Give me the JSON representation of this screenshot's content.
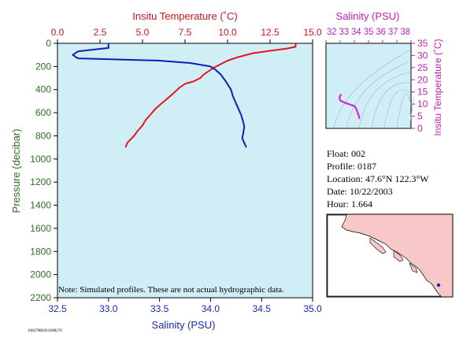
{
  "page": {
    "float_id_tag": "1066788039.0388276"
  },
  "info": {
    "float": "Float:  002",
    "profile": "Profile:  0187",
    "location": "Location:  47.6°N  122.3°W",
    "date": "Date:  10/22/2003",
    "hour": "Hour:  1.664"
  },
  "note": "Note: Simulated profiles.  These are not actual hydrographic data.",
  "colors": {
    "plot_bg": "#d0eef5",
    "temperature": "#e8141e",
    "salinity": "#0d1fb8",
    "ts_curve": "#e020d0",
    "axis_text_temp": "#c8141e",
    "axis_text_sal": "#1a28b0",
    "axis_text_pressure": "#2f6b25",
    "map_land": "#f8c8c8",
    "map_water": "#ffffff",
    "map_marker": "#1a28b0"
  },
  "chart_data": [
    {
      "type": "line",
      "title": "",
      "xlabel": "Salinity (PSU)",
      "x2label": "Insitu Temperature (˚C)",
      "ylabel": "Pressure (decibar)",
      "xlim_salinity": [
        32.5,
        35.0
      ],
      "xlim_temperature": [
        0.0,
        15.0
      ],
      "ylim": [
        2200,
        0
      ],
      "x_ticks_salinity": [
        "32.5",
        "33.0",
        "33.5",
        "34.0",
        "34.5",
        "35.0"
      ],
      "x_ticks_temperature": [
        "0.0",
        "2.5",
        "5.0",
        "7.5",
        "10.0",
        "12.5",
        "15.0"
      ],
      "y_ticks": [
        "0",
        "200",
        "400",
        "600",
        "800",
        "1000",
        "1200",
        "1400",
        "1600",
        "1800",
        "2000",
        "2200"
      ],
      "grid": false,
      "series": [
        {
          "name": "temperature",
          "axis": "x2",
          "points": [
            [
              14.0,
              0
            ],
            [
              14.0,
              30
            ],
            [
              13.5,
              45
            ],
            [
              12.5,
              65
            ],
            [
              11.5,
              85
            ],
            [
              10.6,
              120
            ],
            [
              10.0,
              150
            ],
            [
              9.6,
              180
            ],
            [
              9.2,
              210
            ],
            [
              8.9,
              240
            ],
            [
              8.6,
              270
            ],
            [
              8.4,
              300
            ],
            [
              8.0,
              330
            ],
            [
              7.5,
              350
            ],
            [
              7.2,
              380
            ],
            [
              6.9,
              420
            ],
            [
              6.6,
              460
            ],
            [
              6.2,
              510
            ],
            [
              5.8,
              560
            ],
            [
              5.5,
              610
            ],
            [
              5.2,
              660
            ],
            [
              5.0,
              710
            ],
            [
              4.7,
              760
            ],
            [
              4.5,
              800
            ],
            [
              4.3,
              830
            ],
            [
              4.1,
              860
            ],
            [
              4.0,
              900
            ]
          ]
        },
        {
          "name": "salinity",
          "axis": "x",
          "points": [
            [
              33.0,
              0
            ],
            [
              33.0,
              40
            ],
            [
              32.9,
              50
            ],
            [
              32.7,
              70
            ],
            [
              32.65,
              100
            ],
            [
              32.7,
              130
            ],
            [
              33.5,
              150
            ],
            [
              33.8,
              170
            ],
            [
              34.0,
              200
            ],
            [
              34.05,
              230
            ],
            [
              34.1,
              270
            ],
            [
              34.15,
              330
            ],
            [
              34.2,
              400
            ],
            [
              34.22,
              460
            ],
            [
              34.24,
              500
            ],
            [
              34.27,
              560
            ],
            [
              34.3,
              620
            ],
            [
              34.32,
              680
            ],
            [
              34.33,
              720
            ],
            [
              34.32,
              780
            ],
            [
              34.31,
              820
            ],
            [
              34.33,
              860
            ],
            [
              34.35,
              900
            ]
          ]
        }
      ]
    },
    {
      "type": "line",
      "title": "",
      "xlabel": "Salinity (PSU)",
      "ylabel": "Insitu Temperature (˚C)",
      "xlim": [
        32,
        38
      ],
      "ylim": [
        0,
        35
      ],
      "x_ticks": [
        "32",
        "33",
        "34",
        "35",
        "36",
        "37",
        "38"
      ],
      "x_ticks_text": "32 33 34 35 36 37 38",
      "x_axis_label_text": "Salinity (PSU)",
      "y_ticks": [
        "0",
        "5",
        "10",
        "15",
        "20",
        "25",
        "30",
        "35"
      ],
      "grid": false,
      "series": [
        {
          "name": "ts",
          "points": [
            [
              33.1,
              14.0
            ],
            [
              33.0,
              13.5
            ],
            [
              32.95,
              12.5
            ],
            [
              33.0,
              11.5
            ],
            [
              33.3,
              10.6
            ],
            [
              33.6,
              10.0
            ],
            [
              33.8,
              9.6
            ],
            [
              34.0,
              9.2
            ],
            [
              34.05,
              8.9
            ],
            [
              34.1,
              8.4
            ],
            [
              34.15,
              7.8
            ],
            [
              34.2,
              7.0
            ],
            [
              34.25,
              6.2
            ],
            [
              34.3,
              5.5
            ],
            [
              34.33,
              5.0
            ],
            [
              34.35,
              4.5
            ],
            [
              34.33,
              4.0
            ]
          ]
        }
      ]
    }
  ]
}
